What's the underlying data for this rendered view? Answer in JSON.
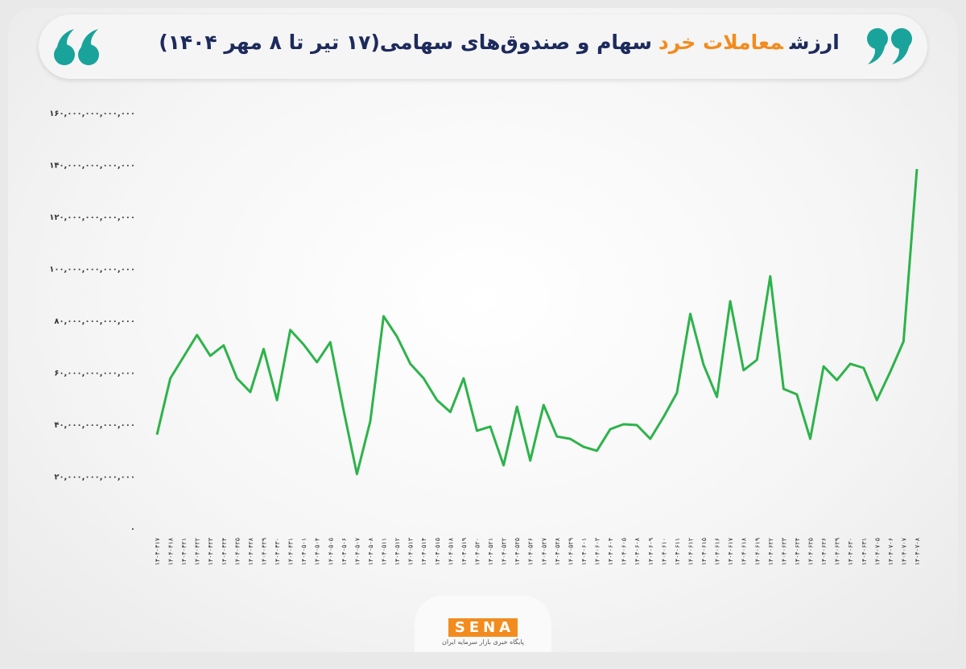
{
  "chart_data": {
    "type": "line",
    "title": [
      "ارزش",
      "معاملات خرد",
      "سهام و صندوق‌های سهامی(۱۷ تیر تا ۸ مهر ۱۴۰۴)"
    ],
    "title_colors": [
      "#1d2a5c",
      "#f28c1e",
      "#1d2a5c"
    ],
    "color": "#2db34a",
    "categories": [
      "۱۴۰۴۰۴۱۷",
      "۱۴۰۴۰۴۱۸",
      "۱۴۰۴۰۴۲۱",
      "۱۴۰۴۰۴۲۲",
      "۱۴۰۴۰۴۲۳",
      "۱۴۰۴۰۴۲۴",
      "۱۴۰۴۰۴۲۵",
      "۱۴۰۴۰۴۲۸",
      "۱۴۰۴۰۴۲۹",
      "۱۴۰۴۰۴۳۰",
      "۱۴۰۴۰۴۳۱",
      "۱۴۰۴۰۵۰۱",
      "۱۴۰۴۰۵۰۴",
      "۱۴۰۴۰۵۰۵",
      "۱۴۰۴۰۵۰۶",
      "۱۴۰۴۰۵۰۷",
      "۱۴۰۴۰۵۰۸",
      "۱۴۰۴۰۵۱۱",
      "۱۴۰۴۰۵۱۲",
      "۱۴۰۴۰۵۱۳",
      "۱۴۰۴۰۵۱۴",
      "۱۴۰۴۰۵۱۵",
      "۱۴۰۴۰۵۱۸",
      "۱۴۰۴۰۵۱۹",
      "۱۴۰۴۰۵۲۰",
      "۱۴۰۴۰۵۲۱",
      "۱۴۰۴۰۵۲۲",
      "۱۴۰۴۰۵۲۵",
      "۱۴۰۴۰۵۲۶",
      "۱۴۰۴۰۵۲۷",
      "۱۴۰۴۰۵۲۸",
      "۱۴۰۴۰۵۲۹",
      "۱۴۰۴۰۶۰۱",
      "۱۴۰۴۰۶۰۳",
      "۱۴۰۴۰۶۰۴",
      "۱۴۰۴۰۶۰۵",
      "۱۴۰۴۰۶۰۸",
      "۱۴۰۴۰۶۰۹",
      "۱۴۰۴۰۶۱۰",
      "۱۴۰۴۰۶۱۱",
      "۱۴۰۴۰۶۱۲",
      "۱۴۰۴۰۶۱۵",
      "۱۴۰۴۰۶۱۶",
      "۱۴۰۴۰۶۱۷",
      "۱۴۰۴۰۶۱۸",
      "۱۴۰۴۰۶۱۹",
      "۱۴۰۴۰۶۲۲",
      "۱۴۰۴۰۶۲۳",
      "۱۴۰۴۰۶۲۴",
      "۱۴۰۴۰۶۲۵",
      "۱۴۰۴۰۶۲۶",
      "۱۴۰۴۰۶۲۹",
      "۱۴۰۴۰۶۳۰",
      "۱۴۰۴۰۶۳۱",
      "۱۴۰۴۰۷۰۵",
      "۱۴۰۴۰۷۰۶",
      "۱۴۰۴۰۷۰۷",
      "۱۴۰۴۰۷۰۸"
    ],
    "values": [
      36000000000000,
      57700000000000,
      66000000000000,
      74400000000000,
      66400000000000,
      70400000000000,
      57700000000000,
      52400000000000,
      69000000000000,
      49300000000000,
      76300000000000,
      70700000000000,
      63900000000000,
      71600000000000,
      45300000000000,
      20800000000000,
      41200000000000,
      81600000000000,
      73800000000000,
      63300000000000,
      57700000000000,
      49300000000000,
      44700000000000,
      57700000000000,
      37500000000000,
      39100000000000,
      24200000000000,
      46800000000000,
      26000000000000,
      47400000000000,
      35300000000000,
      34400000000000,
      31300000000000,
      29800000000000,
      38100000000000,
      40000000000000,
      39700000000000,
      34400000000000,
      42800000000000,
      52100000000000,
      82500000000000,
      62900000000000,
      50500000000000,
      87400000000000,
      60800000000000,
      64800000000000,
      97000000000000,
      53600000000000,
      51500000000000,
      34400000000000,
      62300000000000,
      57000000000000,
      63300000000000,
      61700000000000,
      49300000000000,
      60200000000000,
      71900000000000,
      138300000000000
    ],
    "ylim": [
      0,
      160000000000000
    ],
    "yticks": [
      {
        "value": 0,
        "label": "۰"
      },
      {
        "value": 20000000000000,
        "label": "۲۰,۰۰۰,۰۰۰,۰۰۰,۰۰۰"
      },
      {
        "value": 40000000000000,
        "label": "۴۰,۰۰۰,۰۰۰,۰۰۰,۰۰۰"
      },
      {
        "value": 60000000000000,
        "label": "۶۰,۰۰۰,۰۰۰,۰۰۰,۰۰۰"
      },
      {
        "value": 80000000000000,
        "label": "۸۰,۰۰۰,۰۰۰,۰۰۰,۰۰۰"
      },
      {
        "value": 100000000000000,
        "label": "۱۰۰,۰۰۰,۰۰۰,۰۰۰,۰۰۰"
      },
      {
        "value": 120000000000000,
        "label": "۱۲۰,۰۰۰,۰۰۰,۰۰۰,۰۰۰"
      },
      {
        "value": 140000000000000,
        "label": "۱۴۰,۰۰۰,۰۰۰,۰۰۰,۰۰۰"
      },
      {
        "value": 160000000000000,
        "label": "۱۶۰,۰۰۰,۰۰۰,۰۰۰,۰۰۰"
      }
    ],
    "grid": false
  },
  "logo": {
    "name": "SENA",
    "tagline": "پایگاه خبری بازار سرمایه ایران"
  }
}
